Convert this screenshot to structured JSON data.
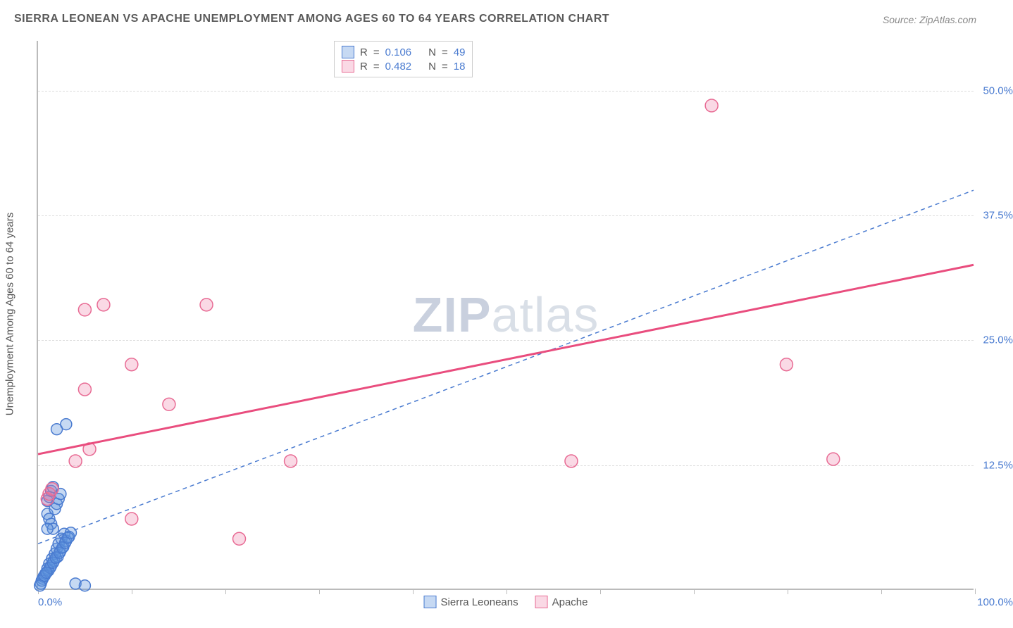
{
  "title": "SIERRA LEONEAN VS APACHE UNEMPLOYMENT AMONG AGES 60 TO 64 YEARS CORRELATION CHART",
  "source": "Source: ZipAtlas.com",
  "watermark_bold": "ZIP",
  "watermark_rest": "atlas",
  "ylabel": "Unemployment Among Ages 60 to 64 years",
  "chart": {
    "type": "scatter",
    "xlim": [
      0,
      100
    ],
    "ylim": [
      0,
      55
    ],
    "x_ticks": [
      0,
      10,
      20,
      30,
      40,
      50,
      60,
      70,
      80,
      90,
      100
    ],
    "x_tick_labels": {
      "0": "0.0%",
      "100": "100.0%"
    },
    "y_gridlines": [
      12.5,
      25.0,
      37.5,
      50.0
    ],
    "y_tick_labels": [
      "12.5%",
      "25.0%",
      "37.5%",
      "50.0%"
    ],
    "background_color": "#ffffff",
    "grid_color": "#dddddd",
    "axis_color": "#bbbbbb",
    "series": [
      {
        "name": "Sierra Leoneans",
        "color_fill": "rgba(93,145,220,0.35)",
        "color_stroke": "#4a7bd0",
        "marker_radius": 8,
        "points": [
          [
            0.5,
            1.0
          ],
          [
            0.8,
            1.5
          ],
          [
            1.0,
            2.0
          ],
          [
            1.2,
            2.5
          ],
          [
            1.5,
            3.0
          ],
          [
            1.8,
            3.5
          ],
          [
            2.0,
            4.0
          ],
          [
            2.2,
            4.5
          ],
          [
            2.5,
            5.0
          ],
          [
            2.8,
            5.5
          ],
          [
            0.3,
            0.5
          ],
          [
            0.6,
            1.2
          ],
          [
            1.1,
            1.8
          ],
          [
            1.4,
            2.3
          ],
          [
            1.7,
            2.8
          ],
          [
            2.1,
            3.2
          ],
          [
            2.4,
            3.8
          ],
          [
            2.7,
            4.2
          ],
          [
            3.0,
            4.8
          ],
          [
            3.3,
            5.2
          ],
          [
            0.4,
            0.8
          ],
          [
            0.7,
            1.3
          ],
          [
            1.3,
            2.1
          ],
          [
            1.6,
            2.6
          ],
          [
            1.9,
            3.1
          ],
          [
            2.3,
            3.6
          ],
          [
            2.6,
            4.1
          ],
          [
            2.9,
            4.6
          ],
          [
            3.2,
            5.1
          ],
          [
            3.5,
            5.6
          ],
          [
            0.2,
            0.3
          ],
          [
            0.9,
            1.6
          ],
          [
            1.0,
            8.8
          ],
          [
            1.2,
            9.2
          ],
          [
            1.4,
            9.8
          ],
          [
            1.6,
            10.2
          ],
          [
            1.0,
            7.5
          ],
          [
            1.2,
            7.0
          ],
          [
            1.4,
            6.5
          ],
          [
            1.6,
            6.0
          ],
          [
            2.0,
            16.0
          ],
          [
            3.0,
            16.5
          ],
          [
            4.0,
            0.5
          ],
          [
            5.0,
            0.3
          ],
          [
            1.8,
            8.0
          ],
          [
            2.0,
            8.5
          ],
          [
            2.2,
            9.0
          ],
          [
            2.4,
            9.5
          ],
          [
            1.0,
            6.0
          ]
        ],
        "trend_line": {
          "x1": 0,
          "y1": 4.5,
          "x2": 100,
          "y2": 40.0,
          "dash": "6 5",
          "stroke": "#4a7bd0",
          "width": 1.5
        }
      },
      {
        "name": "Apache",
        "color_fill": "rgba(236,120,160,0.28)",
        "color_stroke": "#e86b94",
        "marker_radius": 9,
        "points": [
          [
            1.0,
            9.0
          ],
          [
            1.2,
            9.5
          ],
          [
            1.5,
            10.0
          ],
          [
            4.0,
            12.8
          ],
          [
            5.0,
            28.0
          ],
          [
            7.0,
            28.5
          ],
          [
            5.0,
            20.0
          ],
          [
            5.5,
            14.0
          ],
          [
            10.0,
            22.5
          ],
          [
            14.0,
            18.5
          ],
          [
            10.0,
            7.0
          ],
          [
            18.0,
            28.5
          ],
          [
            27.0,
            12.8
          ],
          [
            57.0,
            12.8
          ],
          [
            72.0,
            48.5
          ],
          [
            80.0,
            22.5
          ],
          [
            85.0,
            13.0
          ],
          [
            21.5,
            5.0
          ]
        ],
        "trend_line": {
          "x1": 0,
          "y1": 13.5,
          "x2": 100,
          "y2": 32.5,
          "dash": "none",
          "stroke": "#e94d7e",
          "width": 3
        }
      }
    ]
  },
  "stats": [
    {
      "swatch_fill": "rgba(93,145,220,0.35)",
      "swatch_stroke": "#4a7bd0",
      "r_label": "R",
      "r_value": "0.106",
      "n_label": "N",
      "n_value": "49"
    },
    {
      "swatch_fill": "rgba(236,120,160,0.28)",
      "swatch_stroke": "#e86b94",
      "r_label": "R",
      "r_value": "0.482",
      "n_label": "N",
      "n_value": "18"
    }
  ],
  "bottom_legend": [
    {
      "swatch_fill": "rgba(93,145,220,0.35)",
      "swatch_stroke": "#4a7bd0",
      "label": "Sierra Leoneans"
    },
    {
      "swatch_fill": "rgba(236,120,160,0.28)",
      "swatch_stroke": "#e86b94",
      "label": "Apache"
    }
  ]
}
